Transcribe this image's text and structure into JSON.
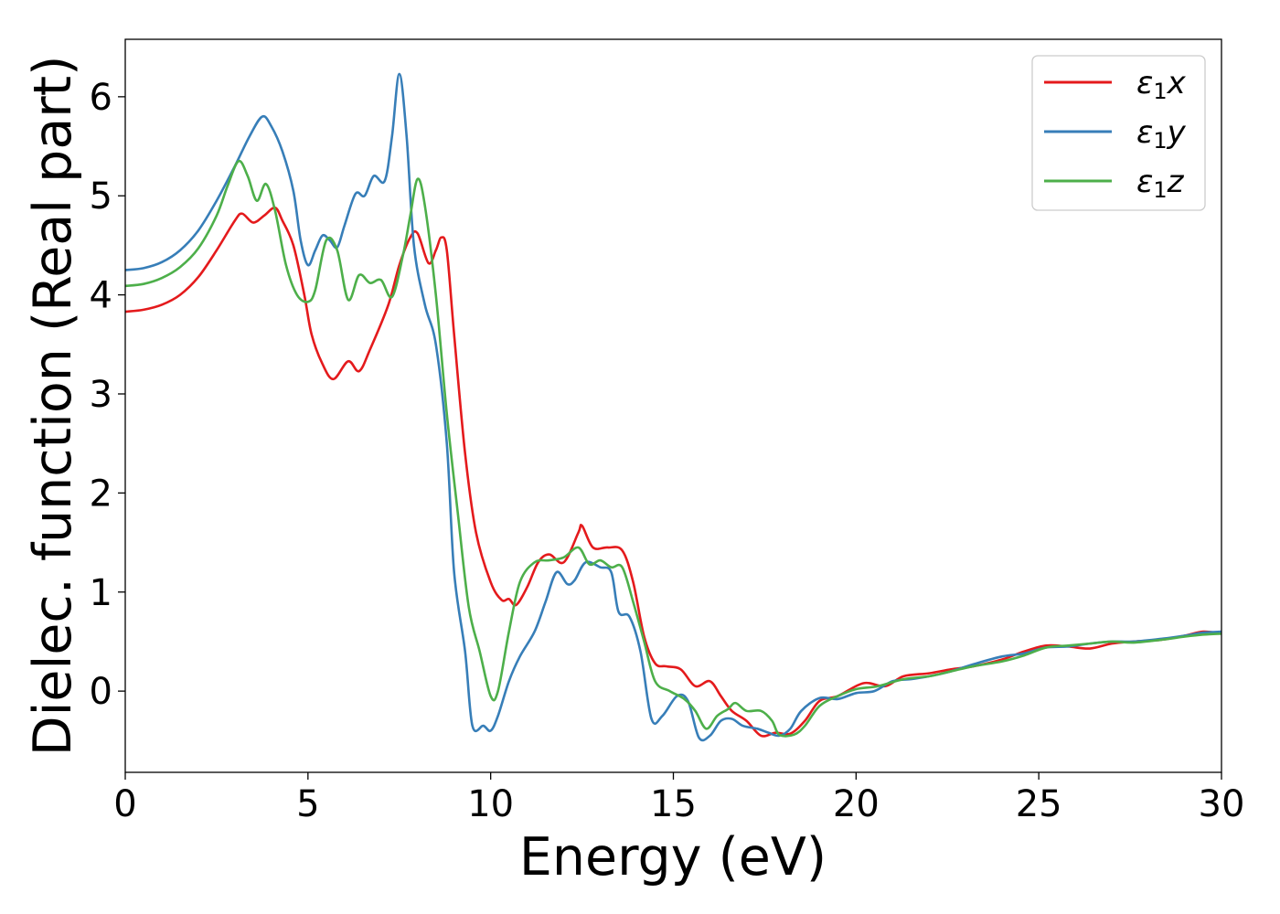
{
  "chart_data": {
    "type": "line",
    "xlabel": "Energy (eV)",
    "ylabel": "Dielec. function (Real part)",
    "xlim": [
      0,
      30
    ],
    "ylim": [
      -0.82,
      6.58
    ],
    "xticks": [
      0,
      5,
      10,
      15,
      20,
      25,
      30
    ],
    "yticks": [
      0,
      1,
      2,
      3,
      4,
      5,
      6
    ],
    "grid": false,
    "legend_position": "top-right",
    "series": [
      {
        "name": "ε₁x",
        "legend_base": "ε",
        "legend_sub": "1",
        "legend_suffix": "x",
        "color": "#e41a1c",
        "points": [
          [
            0,
            3.83
          ],
          [
            0.5,
            3.85
          ],
          [
            1,
            3.9
          ],
          [
            1.5,
            4.0
          ],
          [
            2,
            4.18
          ],
          [
            2.5,
            4.45
          ],
          [
            3,
            4.75
          ],
          [
            3.2,
            4.82
          ],
          [
            3.5,
            4.73
          ],
          [
            3.8,
            4.8
          ],
          [
            4.1,
            4.88
          ],
          [
            4.3,
            4.75
          ],
          [
            4.6,
            4.5
          ],
          [
            4.9,
            4.0
          ],
          [
            5.1,
            3.6
          ],
          [
            5.4,
            3.3
          ],
          [
            5.7,
            3.15
          ],
          [
            6.1,
            3.33
          ],
          [
            6.4,
            3.23
          ],
          [
            6.7,
            3.45
          ],
          [
            7.2,
            3.9
          ],
          [
            7.5,
            4.3
          ],
          [
            7.8,
            4.58
          ],
          [
            8.0,
            4.62
          ],
          [
            8.3,
            4.32
          ],
          [
            8.5,
            4.45
          ],
          [
            8.65,
            4.58
          ],
          [
            8.8,
            4.45
          ],
          [
            9.0,
            3.6
          ],
          [
            9.3,
            2.4
          ],
          [
            9.6,
            1.6
          ],
          [
            10,
            1.1
          ],
          [
            10.3,
            0.92
          ],
          [
            10.5,
            0.93
          ],
          [
            10.7,
            0.87
          ],
          [
            11.0,
            1.05
          ],
          [
            11.3,
            1.3
          ],
          [
            11.6,
            1.38
          ],
          [
            12.0,
            1.3
          ],
          [
            12.4,
            1.6
          ],
          [
            12.5,
            1.67
          ],
          [
            12.8,
            1.45
          ],
          [
            13.2,
            1.45
          ],
          [
            13.6,
            1.42
          ],
          [
            13.9,
            1.1
          ],
          [
            14.2,
            0.55
          ],
          [
            14.5,
            0.28
          ],
          [
            14.8,
            0.25
          ],
          [
            15.2,
            0.22
          ],
          [
            15.6,
            0.05
          ],
          [
            16.0,
            0.1
          ],
          [
            16.3,
            -0.05
          ],
          [
            16.6,
            -0.2
          ],
          [
            17.0,
            -0.3
          ],
          [
            17.4,
            -0.45
          ],
          [
            17.8,
            -0.42
          ],
          [
            18.2,
            -0.43
          ],
          [
            18.6,
            -0.3
          ],
          [
            19.0,
            -0.1
          ],
          [
            19.5,
            -0.05
          ],
          [
            20.2,
            0.08
          ],
          [
            20.8,
            0.05
          ],
          [
            21.3,
            0.15
          ],
          [
            22.0,
            0.18
          ],
          [
            22.6,
            0.22
          ],
          [
            23.2,
            0.25
          ],
          [
            24.0,
            0.32
          ],
          [
            24.6,
            0.4
          ],
          [
            25.2,
            0.46
          ],
          [
            25.8,
            0.45
          ],
          [
            26.4,
            0.43
          ],
          [
            27.0,
            0.48
          ],
          [
            27.6,
            0.5
          ],
          [
            28.4,
            0.52
          ],
          [
            29.0,
            0.56
          ],
          [
            29.5,
            0.6
          ],
          [
            30,
            0.58
          ]
        ]
      },
      {
        "name": "ε₁y",
        "legend_base": "ε",
        "legend_sub": "1",
        "legend_suffix": "y",
        "color": "#377eb8",
        "points": [
          [
            0,
            4.25
          ],
          [
            0.5,
            4.27
          ],
          [
            1,
            4.33
          ],
          [
            1.5,
            4.45
          ],
          [
            2,
            4.65
          ],
          [
            2.5,
            4.95
          ],
          [
            3,
            5.3
          ],
          [
            3.4,
            5.6
          ],
          [
            3.75,
            5.8
          ],
          [
            4.0,
            5.7
          ],
          [
            4.3,
            5.45
          ],
          [
            4.6,
            5.05
          ],
          [
            4.8,
            4.55
          ],
          [
            5.0,
            4.3
          ],
          [
            5.2,
            4.45
          ],
          [
            5.4,
            4.6
          ],
          [
            5.6,
            4.55
          ],
          [
            5.8,
            4.48
          ],
          [
            6.0,
            4.7
          ],
          [
            6.3,
            5.02
          ],
          [
            6.55,
            5.0
          ],
          [
            6.8,
            5.2
          ],
          [
            7.1,
            5.15
          ],
          [
            7.3,
            5.6
          ],
          [
            7.5,
            6.23
          ],
          [
            7.7,
            5.6
          ],
          [
            7.9,
            4.5
          ],
          [
            8.2,
            3.9
          ],
          [
            8.5,
            3.5
          ],
          [
            8.8,
            2.5
          ],
          [
            9.0,
            1.2
          ],
          [
            9.3,
            0.4
          ],
          [
            9.5,
            -0.35
          ],
          [
            9.8,
            -0.35
          ],
          [
            10.0,
            -0.4
          ],
          [
            10.2,
            -0.25
          ],
          [
            10.5,
            0.1
          ],
          [
            10.8,
            0.35
          ],
          [
            11.2,
            0.6
          ],
          [
            11.5,
            0.9
          ],
          [
            11.8,
            1.2
          ],
          [
            12.1,
            1.08
          ],
          [
            12.3,
            1.12
          ],
          [
            12.6,
            1.3
          ],
          [
            13.0,
            1.25
          ],
          [
            13.3,
            1.2
          ],
          [
            13.5,
            0.8
          ],
          [
            13.8,
            0.75
          ],
          [
            14.1,
            0.4
          ],
          [
            14.4,
            -0.28
          ],
          [
            14.7,
            -0.25
          ],
          [
            15.1,
            -0.05
          ],
          [
            15.4,
            -0.1
          ],
          [
            15.7,
            -0.47
          ],
          [
            16.0,
            -0.45
          ],
          [
            16.3,
            -0.3
          ],
          [
            16.6,
            -0.28
          ],
          [
            16.9,
            -0.35
          ],
          [
            17.3,
            -0.38
          ],
          [
            17.6,
            -0.42
          ],
          [
            17.9,
            -0.45
          ],
          [
            18.2,
            -0.38
          ],
          [
            18.5,
            -0.2
          ],
          [
            19.0,
            -0.07
          ],
          [
            19.5,
            -0.08
          ],
          [
            20.0,
            -0.02
          ],
          [
            20.5,
            0.0
          ],
          [
            21.0,
            0.1
          ],
          [
            21.5,
            0.12
          ],
          [
            22.0,
            0.15
          ],
          [
            22.6,
            0.2
          ],
          [
            23.2,
            0.27
          ],
          [
            24.0,
            0.35
          ],
          [
            24.6,
            0.38
          ],
          [
            25.2,
            0.44
          ],
          [
            25.8,
            0.45
          ],
          [
            26.4,
            0.48
          ],
          [
            27.0,
            0.5
          ],
          [
            27.6,
            0.5
          ],
          [
            28.4,
            0.53
          ],
          [
            29.0,
            0.56
          ],
          [
            29.5,
            0.59
          ],
          [
            30,
            0.6
          ]
        ]
      },
      {
        "name": "ε₁z",
        "legend_base": "ε",
        "legend_sub": "1",
        "legend_suffix": "z",
        "color": "#4daf4a",
        "points": [
          [
            0,
            4.09
          ],
          [
            0.5,
            4.11
          ],
          [
            1,
            4.17
          ],
          [
            1.5,
            4.28
          ],
          [
            2,
            4.47
          ],
          [
            2.5,
            4.8
          ],
          [
            2.8,
            5.1
          ],
          [
            3.1,
            5.35
          ],
          [
            3.35,
            5.2
          ],
          [
            3.6,
            4.95
          ],
          [
            3.85,
            5.12
          ],
          [
            4.1,
            4.85
          ],
          [
            4.4,
            4.3
          ],
          [
            4.7,
            4.0
          ],
          [
            5.0,
            3.93
          ],
          [
            5.2,
            4.05
          ],
          [
            5.5,
            4.55
          ],
          [
            5.8,
            4.45
          ],
          [
            6.1,
            3.95
          ],
          [
            6.4,
            4.2
          ],
          [
            6.7,
            4.12
          ],
          [
            7.0,
            4.15
          ],
          [
            7.3,
            3.98
          ],
          [
            7.6,
            4.4
          ],
          [
            7.8,
            4.8
          ],
          [
            8.0,
            5.17
          ],
          [
            8.2,
            4.9
          ],
          [
            8.5,
            4.0
          ],
          [
            8.8,
            2.8
          ],
          [
            9.1,
            1.8
          ],
          [
            9.4,
            0.85
          ],
          [
            9.7,
            0.4
          ],
          [
            10.0,
            -0.05
          ],
          [
            10.2,
            0.0
          ],
          [
            10.5,
            0.6
          ],
          [
            10.8,
            1.1
          ],
          [
            11.2,
            1.3
          ],
          [
            11.6,
            1.32
          ],
          [
            12.0,
            1.35
          ],
          [
            12.4,
            1.45
          ],
          [
            12.7,
            1.28
          ],
          [
            13.0,
            1.32
          ],
          [
            13.3,
            1.25
          ],
          [
            13.6,
            1.25
          ],
          [
            13.9,
            0.9
          ],
          [
            14.2,
            0.5
          ],
          [
            14.5,
            0.1
          ],
          [
            14.9,
            0.0
          ],
          [
            15.3,
            -0.08
          ],
          [
            15.6,
            -0.2
          ],
          [
            15.9,
            -0.38
          ],
          [
            16.2,
            -0.25
          ],
          [
            16.5,
            -0.18
          ],
          [
            16.7,
            -0.12
          ],
          [
            17.0,
            -0.2
          ],
          [
            17.4,
            -0.2
          ],
          [
            17.7,
            -0.3
          ],
          [
            17.9,
            -0.44
          ],
          [
            18.3,
            -0.44
          ],
          [
            18.6,
            -0.35
          ],
          [
            19.0,
            -0.15
          ],
          [
            19.5,
            -0.05
          ],
          [
            20.0,
            0.02
          ],
          [
            20.6,
            0.05
          ],
          [
            21.3,
            0.12
          ],
          [
            22.0,
            0.15
          ],
          [
            22.6,
            0.2
          ],
          [
            23.2,
            0.25
          ],
          [
            24.0,
            0.3
          ],
          [
            24.6,
            0.36
          ],
          [
            25.2,
            0.44
          ],
          [
            25.8,
            0.46
          ],
          [
            26.4,
            0.48
          ],
          [
            27.0,
            0.5
          ],
          [
            27.6,
            0.49
          ],
          [
            28.4,
            0.52
          ],
          [
            29.0,
            0.55
          ],
          [
            29.5,
            0.57
          ],
          [
            30,
            0.58
          ]
        ]
      }
    ]
  }
}
